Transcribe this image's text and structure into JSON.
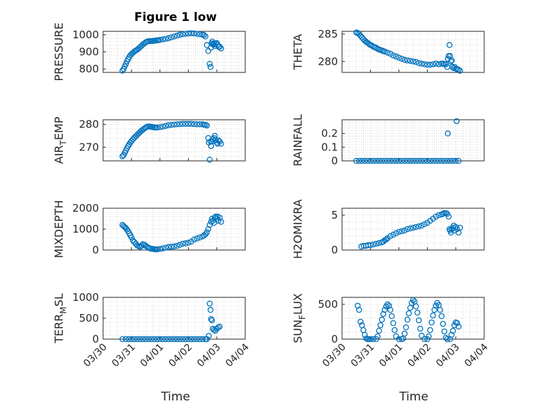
{
  "title": "Figure 1 low",
  "x_axis": {
    "label": "Time",
    "tick_labels": [
      "03/30",
      "03/31",
      "04/01",
      "04/02",
      "04/03",
      "04/04"
    ],
    "range_days": [
      0,
      5
    ]
  },
  "marker_color": "#0072bd",
  "chart_data": [
    {
      "id": "pressure",
      "type": "scatter",
      "ylabel": "PRESSURE",
      "title": "Figure 1 low",
      "ylim": [
        780,
        1020
      ],
      "yticks": [
        800,
        900,
        1000
      ],
      "ytick_labels": [
        "800",
        "900",
        "1000"
      ],
      "x": [
        0.68,
        0.72,
        0.76,
        0.8,
        0.84,
        0.88,
        0.92,
        0.96,
        1.0,
        1.05,
        1.1,
        1.15,
        1.2,
        1.25,
        1.3,
        1.35,
        1.4,
        1.45,
        1.5,
        1.55,
        1.6,
        1.65,
        1.7,
        1.75,
        1.8,
        1.85,
        1.9,
        1.95,
        2.0,
        2.1,
        2.2,
        2.3,
        2.4,
        2.5,
        2.6,
        2.7,
        2.8,
        2.9,
        3.0,
        3.1,
        3.2,
        3.3,
        3.4,
        3.5,
        3.55,
        3.6,
        3.65,
        3.7,
        3.75,
        3.78,
        3.8,
        3.82,
        3.84,
        3.86,
        3.88,
        3.9,
        3.93,
        3.96,
        4.0,
        4.03,
        4.06,
        4.1,
        4.15
      ],
      "y": [
        790,
        800,
        815,
        830,
        845,
        858,
        870,
        880,
        888,
        895,
        902,
        908,
        913,
        920,
        928,
        935,
        943,
        950,
        956,
        960,
        962,
        963,
        963,
        964,
        965,
        966,
        967,
        968,
        970,
        973,
        976,
        980,
        985,
        990,
        995,
        1000,
        1003,
        1006,
        1008,
        1009,
        1008,
        1006,
        1003,
        1000,
        998,
        990,
        940,
        905,
        830,
        812,
        925,
        950,
        960,
        945,
        942,
        950,
        935,
        948,
        952,
        942,
        930,
        930,
        920
      ]
    },
    {
      "id": "theta",
      "type": "scatter",
      "ylabel": "THETA",
      "ylim": [
        278,
        285.5
      ],
      "yticks": [
        280,
        285
      ],
      "ytick_labels": [
        "280",
        "285"
      ],
      "x": [
        0.5,
        0.55,
        0.6,
        0.65,
        0.7,
        0.75,
        0.8,
        0.85,
        0.9,
        0.95,
        1.0,
        1.05,
        1.1,
        1.15,
        1.2,
        1.25,
        1.3,
        1.35,
        1.4,
        1.45,
        1.5,
        1.6,
        1.7,
        1.8,
        1.9,
        2.0,
        2.1,
        2.2,
        2.3,
        2.4,
        2.5,
        2.6,
        2.7,
        2.8,
        2.9,
        3.0,
        3.1,
        3.2,
        3.3,
        3.4,
        3.5,
        3.55,
        3.6,
        3.65,
        3.7,
        3.72,
        3.75,
        3.78,
        3.8,
        3.83,
        3.86,
        3.88,
        3.92,
        3.96,
        4.0,
        4.05,
        4.1,
        4.15
      ],
      "y": [
        285.3,
        285.2,
        285.0,
        284.7,
        284.4,
        284.1,
        283.8,
        283.6,
        283.4,
        283.2,
        283.0,
        282.9,
        282.7,
        282.6,
        282.5,
        282.3,
        282.2,
        282.1,
        282.0,
        281.9,
        281.8,
        281.6,
        281.4,
        281.1,
        280.9,
        280.7,
        280.5,
        280.3,
        280.2,
        280.1,
        280.0,
        279.9,
        279.7,
        279.6,
        279.5,
        279.4,
        279.4,
        279.5,
        279.6,
        279.5,
        279.6,
        279.6,
        279.5,
        279.5,
        279.0,
        280.5,
        281.0,
        283.0,
        281.0,
        280.0,
        280.2,
        279.0,
        278.8,
        279.0,
        278.7,
        278.6,
        278.5,
        278.3
      ]
    },
    {
      "id": "air_temp",
      "type": "scatter",
      "ylabel": "AIR_TEMP",
      "ylim": [
        264,
        282
      ],
      "yticks": [
        270,
        280
      ],
      "ytick_labels": [
        "270",
        "280"
      ],
      "x": [
        0.68,
        0.72,
        0.76,
        0.8,
        0.84,
        0.88,
        0.92,
        0.96,
        1.0,
        1.05,
        1.1,
        1.15,
        1.2,
        1.25,
        1.3,
        1.35,
        1.4,
        1.45,
        1.5,
        1.55,
        1.6,
        1.65,
        1.7,
        1.75,
        1.8,
        1.85,
        1.9,
        2.0,
        2.1,
        2.2,
        2.3,
        2.4,
        2.5,
        2.6,
        2.7,
        2.8,
        2.9,
        3.0,
        3.1,
        3.2,
        3.3,
        3.4,
        3.5,
        3.55,
        3.6,
        3.65,
        3.7,
        3.72,
        3.75,
        3.78,
        3.8,
        3.83,
        3.86,
        3.9,
        3.93,
        3.96,
        4.0,
        4.03,
        4.06,
        4.1,
        4.15
      ],
      "y": [
        266,
        266.5,
        267.5,
        268.5,
        269.5,
        270.5,
        271.3,
        272.0,
        272.7,
        273.5,
        274.2,
        274.8,
        275.4,
        276.0,
        276.6,
        277.2,
        277.7,
        278.2,
        278.6,
        278.9,
        279.1,
        279.0,
        278.9,
        278.8,
        278.7,
        278.6,
        278.6,
        278.8,
        279.0,
        279.3,
        279.6,
        279.8,
        279.9,
        280.0,
        280.1,
        280.2,
        280.2,
        280.2,
        280.2,
        280.1,
        280.0,
        280.0,
        280.0,
        279.8,
        279.8,
        279.5,
        274.0,
        272.0,
        264.5,
        272.5,
        270.5,
        272.5,
        273.5,
        274.0,
        275.0,
        273.0,
        272.0,
        271.5,
        273.0,
        272.5,
        271.5
      ]
    },
    {
      "id": "rainfall",
      "type": "scatter",
      "ylabel": "RAINFALL",
      "ylim": [
        0,
        0.3
      ],
      "yticks": [
        0,
        0.1,
        0.2
      ],
      "ytick_labels": [
        "0",
        "0.1",
        "0.2"
      ],
      "x": [
        0.5,
        0.6,
        0.7,
        0.8,
        0.9,
        1.0,
        1.1,
        1.2,
        1.3,
        1.4,
        1.5,
        1.6,
        1.7,
        1.8,
        1.9,
        2.0,
        2.1,
        2.2,
        2.3,
        2.4,
        2.5,
        2.6,
        2.7,
        2.8,
        2.9,
        3.0,
        3.1,
        3.2,
        3.3,
        3.4,
        3.5,
        3.6,
        3.7,
        3.8,
        3.9,
        4.0,
        4.1,
        3.72,
        4.03
      ],
      "y": [
        0,
        0,
        0,
        0,
        0,
        0,
        0,
        0,
        0,
        0,
        0,
        0,
        0,
        0,
        0,
        0,
        0,
        0,
        0,
        0,
        0,
        0,
        0,
        0,
        0,
        0,
        0,
        0,
        0,
        0,
        0,
        0,
        0,
        0,
        0,
        0,
        0,
        0.2,
        0.29
      ]
    },
    {
      "id": "mixdepth",
      "type": "scatter",
      "ylabel": "MIXDEPTH",
      "ylim": [
        0,
        2000
      ],
      "yticks": [
        0,
        1000,
        2000
      ],
      "ytick_labels": [
        "0",
        "1000",
        "2000"
      ],
      "x": [
        0.68,
        0.72,
        0.76,
        0.8,
        0.84,
        0.88,
        0.92,
        0.96,
        1.0,
        1.05,
        1.1,
        1.15,
        1.2,
        1.25,
        1.3,
        1.35,
        1.4,
        1.45,
        1.5,
        1.55,
        1.6,
        1.65,
        1.7,
        1.75,
        1.8,
        1.85,
        1.9,
        2.0,
        2.1,
        2.2,
        2.3,
        2.4,
        2.5,
        2.6,
        2.7,
        2.8,
        2.9,
        3.0,
        3.1,
        3.2,
        3.3,
        3.4,
        3.5,
        3.55,
        3.6,
        3.65,
        3.7,
        3.75,
        3.8,
        3.83,
        3.86,
        3.9,
        3.93,
        3.96,
        4.0,
        4.03,
        4.06,
        4.1,
        4.15
      ],
      "y": [
        1200,
        1150,
        1100,
        1050,
        980,
        900,
        800,
        700,
        600,
        450,
        380,
        300,
        220,
        180,
        150,
        200,
        280,
        250,
        200,
        150,
        100,
        80,
        60,
        50,
        40,
        30,
        30,
        50,
        80,
        110,
        140,
        160,
        170,
        200,
        250,
        300,
        320,
        350,
        400,
        500,
        550,
        600,
        650,
        700,
        750,
        850,
        1000,
        1200,
        1350,
        1500,
        1400,
        1300,
        1550,
        1600,
        1500,
        1600,
        1400,
        1550,
        1350
      ]
    },
    {
      "id": "h2omixra",
      "type": "scatter",
      "ylabel": "H2OMIXRA",
      "ylim": [
        0,
        6
      ],
      "yticks": [
        0,
        5
      ],
      "ytick_labels": [
        "0",
        "5"
      ],
      "x": [
        0.68,
        0.76,
        0.84,
        0.92,
        1.0,
        1.1,
        1.2,
        1.3,
        1.4,
        1.45,
        1.5,
        1.55,
        1.6,
        1.7,
        1.8,
        1.9,
        2.0,
        2.1,
        2.2,
        2.3,
        2.4,
        2.5,
        2.6,
        2.7,
        2.8,
        2.9,
        3.0,
        3.1,
        3.2,
        3.3,
        3.4,
        3.5,
        3.55,
        3.6,
        3.65,
        3.7,
        3.75,
        3.78,
        3.8,
        3.83,
        3.86,
        3.9,
        3.93,
        3.96,
        4.0,
        4.05,
        4.1,
        4.15
      ],
      "y": [
        0.5,
        0.6,
        0.6,
        0.7,
        0.7,
        0.8,
        0.9,
        1.0,
        1.1,
        1.2,
        1.4,
        1.5,
        1.7,
        2.0,
        2.2,
        2.4,
        2.6,
        2.7,
        2.8,
        3.0,
        3.1,
        3.2,
        3.3,
        3.4,
        3.5,
        3.7,
        3.9,
        4.2,
        4.5,
        4.8,
        5.0,
        5.1,
        5.2,
        5.3,
        5.3,
        5.2,
        4.8,
        3.0,
        2.8,
        2.5,
        3.0,
        3.2,
        3.5,
        2.8,
        3.3,
        3.0,
        2.5,
        3.2
      ]
    },
    {
      "id": "terr_msl",
      "type": "scatter",
      "ylabel": "TERR_MSL",
      "ylim": [
        0,
        1000
      ],
      "yticks": [
        0,
        500,
        1000
      ],
      "ytick_labels": [
        "0",
        "500",
        "1000"
      ],
      "x": [
        0.68,
        0.8,
        0.9,
        1.0,
        1.1,
        1.2,
        1.3,
        1.4,
        1.5,
        1.6,
        1.7,
        1.8,
        1.9,
        2.0,
        2.1,
        2.2,
        2.3,
        2.4,
        2.5,
        2.6,
        2.7,
        2.8,
        2.9,
        3.0,
        3.1,
        3.2,
        3.3,
        3.4,
        3.5,
        3.6,
        3.65,
        3.72,
        3.75,
        3.78,
        3.8,
        3.83,
        3.86,
        3.9,
        3.95,
        4.0,
        4.05,
        4.1
      ],
      "y": [
        0,
        0,
        0,
        0,
        0,
        0,
        0,
        0,
        0,
        0,
        0,
        0,
        0,
        0,
        0,
        0,
        0,
        0,
        0,
        0,
        0,
        0,
        0,
        0,
        0,
        0,
        0,
        0,
        0,
        0,
        0,
        80,
        850,
        700,
        480,
        450,
        250,
        220,
        200,
        250,
        280,
        300
      ]
    },
    {
      "id": "sun_flux",
      "type": "scatter",
      "ylabel": "SUN_FLUX",
      "ylim": [
        0,
        600
      ],
      "yticks": [
        0,
        500
      ],
      "ytick_labels": [
        "0",
        "500"
      ],
      "x": [
        0.55,
        0.6,
        0.65,
        0.7,
        0.75,
        0.8,
        0.85,
        0.9,
        0.95,
        1.0,
        1.1,
        1.2,
        1.25,
        1.3,
        1.35,
        1.4,
        1.45,
        1.5,
        1.55,
        1.6,
        1.65,
        1.7,
        1.75,
        1.8,
        1.85,
        1.9,
        2.0,
        2.1,
        2.15,
        2.2,
        2.25,
        2.3,
        2.35,
        2.4,
        2.45,
        2.5,
        2.55,
        2.6,
        2.65,
        2.7,
        2.75,
        2.8,
        2.9,
        3.0,
        3.05,
        3.1,
        3.15,
        3.2,
        3.25,
        3.3,
        3.35,
        3.4,
        3.45,
        3.5,
        3.55,
        3.6,
        3.65,
        3.7,
        3.8,
        3.85,
        3.9,
        3.95,
        4.0,
        4.05,
        4.1
      ],
      "y": [
        480,
        420,
        250,
        200,
        130,
        60,
        10,
        0,
        0,
        0,
        0,
        0,
        40,
        120,
        200,
        280,
        360,
        420,
        470,
        500,
        480,
        420,
        330,
        230,
        130,
        40,
        0,
        0,
        10,
        80,
        170,
        280,
        370,
        450,
        520,
        560,
        540,
        470,
        380,
        270,
        150,
        50,
        0,
        0,
        40,
        130,
        240,
        340,
        420,
        480,
        520,
        490,
        420,
        330,
        220,
        110,
        20,
        0,
        0,
        60,
        120,
        200,
        240,
        230,
        180
      ]
    }
  ]
}
